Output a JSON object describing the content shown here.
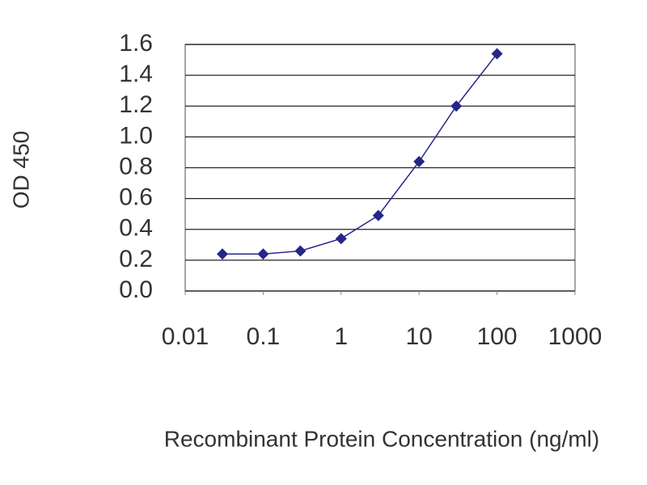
{
  "chart_data": {
    "type": "line",
    "xlabel": "Recombinant Protein Concentration (ng/ml)",
    "ylabel": "OD 450",
    "x": [
      0.03,
      0.1,
      0.3,
      1,
      3,
      10,
      30,
      100
    ],
    "series": [
      {
        "color": "#26268a",
        "values": [
          0.24,
          0.24,
          0.26,
          0.34,
          0.49,
          0.84,
          1.2,
          1.54
        ]
      }
    ],
    "xscale": "log",
    "xlim": [
      0.01,
      1000
    ],
    "xticks": [
      0.01,
      0.1,
      1,
      10,
      100,
      1000
    ],
    "ylim": [
      0,
      1.6
    ],
    "yticks": [
      {
        "value": 0,
        "label": "0.0"
      },
      0.2,
      0.4,
      0.6,
      0.8,
      {
        "value": 1,
        "label": "1.0"
      },
      1.2,
      1.4,
      1.6
    ],
    "grid": true
  }
}
